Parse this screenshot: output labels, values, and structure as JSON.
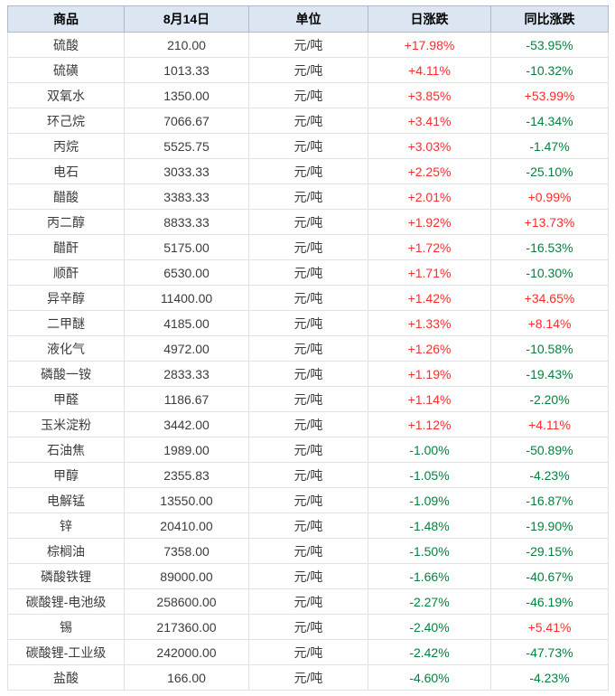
{
  "chart_data": {
    "type": "table",
    "title": "",
    "columns": [
      "商品",
      "8月14日",
      "单位",
      "日涨跌",
      "同比涨跌"
    ],
    "rows": [
      {
        "product": "硫酸",
        "price": "210.00",
        "unit": "元/吨",
        "daily_change": "+17.98%",
        "yoy_change": "-53.95%"
      },
      {
        "product": "硫磺",
        "price": "1013.33",
        "unit": "元/吨",
        "daily_change": "+4.11%",
        "yoy_change": "-10.32%"
      },
      {
        "product": "双氧水",
        "price": "1350.00",
        "unit": "元/吨",
        "daily_change": "+3.85%",
        "yoy_change": "+53.99%"
      },
      {
        "product": "环己烷",
        "price": "7066.67",
        "unit": "元/吨",
        "daily_change": "+3.41%",
        "yoy_change": "-14.34%"
      },
      {
        "product": "丙烷",
        "price": "5525.75",
        "unit": "元/吨",
        "daily_change": "+3.03%",
        "yoy_change": "-1.47%"
      },
      {
        "product": "电石",
        "price": "3033.33",
        "unit": "元/吨",
        "daily_change": "+2.25%",
        "yoy_change": "-25.10%"
      },
      {
        "product": "醋酸",
        "price": "3383.33",
        "unit": "元/吨",
        "daily_change": "+2.01%",
        "yoy_change": "+0.99%"
      },
      {
        "product": "丙二醇",
        "price": "8833.33",
        "unit": "元/吨",
        "daily_change": "+1.92%",
        "yoy_change": "+13.73%"
      },
      {
        "product": "醋酐",
        "price": "5175.00",
        "unit": "元/吨",
        "daily_change": "+1.72%",
        "yoy_change": "-16.53%"
      },
      {
        "product": "顺酐",
        "price": "6530.00",
        "unit": "元/吨",
        "daily_change": "+1.71%",
        "yoy_change": "-10.30%"
      },
      {
        "product": "异辛醇",
        "price": "11400.00",
        "unit": "元/吨",
        "daily_change": "+1.42%",
        "yoy_change": "+34.65%"
      },
      {
        "product": "二甲醚",
        "price": "4185.00",
        "unit": "元/吨",
        "daily_change": "+1.33%",
        "yoy_change": "+8.14%"
      },
      {
        "product": "液化气",
        "price": "4972.00",
        "unit": "元/吨",
        "daily_change": "+1.26%",
        "yoy_change": "-10.58%"
      },
      {
        "product": "磷酸一铵",
        "price": "2833.33",
        "unit": "元/吨",
        "daily_change": "+1.19%",
        "yoy_change": "-19.43%"
      },
      {
        "product": "甲醛",
        "price": "1186.67",
        "unit": "元/吨",
        "daily_change": "+1.14%",
        "yoy_change": "-2.20%"
      },
      {
        "product": "玉米淀粉",
        "price": "3442.00",
        "unit": "元/吨",
        "daily_change": "+1.12%",
        "yoy_change": "+4.11%"
      },
      {
        "product": "石油焦",
        "price": "1989.00",
        "unit": "元/吨",
        "daily_change": "-1.00%",
        "yoy_change": "-50.89%"
      },
      {
        "product": "甲醇",
        "price": "2355.83",
        "unit": "元/吨",
        "daily_change": "-1.05%",
        "yoy_change": "-4.23%"
      },
      {
        "product": "电解锰",
        "price": "13550.00",
        "unit": "元/吨",
        "daily_change": "-1.09%",
        "yoy_change": "-16.87%"
      },
      {
        "product": "锌",
        "price": "20410.00",
        "unit": "元/吨",
        "daily_change": "-1.48%",
        "yoy_change": "-19.90%"
      },
      {
        "product": "棕榈油",
        "price": "7358.00",
        "unit": "元/吨",
        "daily_change": "-1.50%",
        "yoy_change": "-29.15%"
      },
      {
        "product": "磷酸铁锂",
        "price": "89000.00",
        "unit": "元/吨",
        "daily_change": "-1.66%",
        "yoy_change": "-40.67%"
      },
      {
        "product": "碳酸锂-电池级",
        "price": "258600.00",
        "unit": "元/吨",
        "daily_change": "-2.27%",
        "yoy_change": "-46.19%"
      },
      {
        "product": "锡",
        "price": "217360.00",
        "unit": "元/吨",
        "daily_change": "-2.40%",
        "yoy_change": "+5.41%"
      },
      {
        "product": "碳酸锂-工业级",
        "price": "242000.00",
        "unit": "元/吨",
        "daily_change": "-2.42%",
        "yoy_change": "-47.73%"
      },
      {
        "product": "盐酸",
        "price": "166.00",
        "unit": "元/吨",
        "daily_change": "-4.60%",
        "yoy_change": "-4.23%"
      }
    ]
  },
  "table": {
    "headers": [
      "商品",
      "8月14日",
      "单位",
      "日涨跌",
      "同比涨跌"
    ]
  },
  "colors": {
    "positive": "#fe2c2c",
    "negative": "#087f3c",
    "header_bg": "#dce6f3",
    "header_text": "#000000",
    "header_border": "#aeb9cc",
    "body_text": "#3c3c3c",
    "border": "#dbe2ee"
  }
}
